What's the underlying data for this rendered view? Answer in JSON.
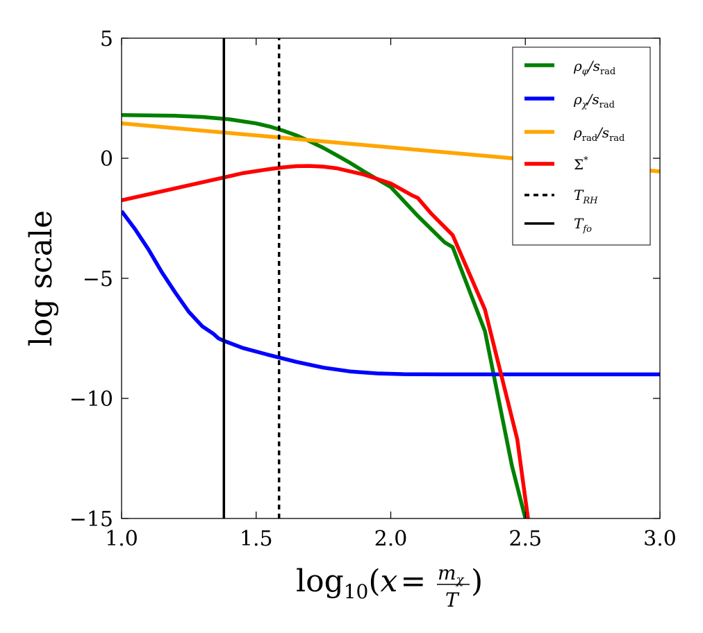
{
  "chart_data": {
    "type": "line",
    "xlabel": "log10(x = mχ / T)",
    "ylabel": "log scale",
    "xlim": [
      1.0,
      3.0
    ],
    "ylim": [
      -15,
      5
    ],
    "xticks": [
      1.0,
      1.5,
      2.0,
      2.5,
      3.0
    ],
    "xtick_labels": [
      "1.0",
      "1.5",
      "2.0",
      "2.5",
      "3.0"
    ],
    "yticks": [
      5,
      0,
      -5,
      -10,
      -15
    ],
    "ytick_labels": [
      "5",
      "0",
      "−5",
      "−10",
      "−15"
    ],
    "grid": false,
    "legend_position": "top-right",
    "series": [
      {
        "name": "ρφ/srad",
        "color": "#008000",
        "style": "solid",
        "x": [
          1.0,
          1.2,
          1.3,
          1.4,
          1.5,
          1.55,
          1.6,
          1.65,
          1.7,
          1.75,
          1.8,
          1.85,
          1.9,
          2.0,
          2.1,
          2.2,
          2.23,
          2.35,
          2.45,
          2.5
        ],
        "y": [
          1.8,
          1.77,
          1.72,
          1.62,
          1.45,
          1.32,
          1.15,
          0.95,
          0.7,
          0.43,
          0.12,
          -0.2,
          -0.55,
          -1.2,
          -2.4,
          -3.5,
          -3.7,
          -7.2,
          -12.8,
          -15.0
        ]
      },
      {
        "name": "ρχ/srad",
        "color": "#0000ff",
        "style": "solid",
        "x": [
          1.0,
          1.05,
          1.1,
          1.15,
          1.2,
          1.25,
          1.3,
          1.34,
          1.36,
          1.38,
          1.45,
          1.55,
          1.65,
          1.75,
          1.85,
          1.95,
          2.05,
          2.2,
          2.5,
          3.0
        ],
        "y": [
          -2.2,
          -2.95,
          -3.8,
          -4.75,
          -5.6,
          -6.4,
          -7.0,
          -7.3,
          -7.5,
          -7.6,
          -7.9,
          -8.2,
          -8.48,
          -8.72,
          -8.88,
          -8.96,
          -8.99,
          -9.0,
          -9.0,
          -9.0
        ]
      },
      {
        "name": "ρrad/srad",
        "color": "#ffa500",
        "style": "solid",
        "x": [
          1.0,
          3.0
        ],
        "y": [
          1.45,
          -0.55
        ]
      },
      {
        "name": "Σ*",
        "color": "#ff0000",
        "style": "solid",
        "x": [
          1.0,
          1.2,
          1.38,
          1.45,
          1.55,
          1.6,
          1.65,
          1.7,
          1.75,
          1.8,
          1.9,
          2.0,
          2.08,
          2.1,
          2.15,
          2.23,
          2.35,
          2.47,
          2.51
        ],
        "y": [
          -1.75,
          -1.25,
          -0.8,
          -0.62,
          -0.45,
          -0.38,
          -0.33,
          -0.32,
          -0.35,
          -0.42,
          -0.68,
          -1.05,
          -1.55,
          -1.65,
          -2.3,
          -3.2,
          -6.3,
          -11.7,
          -15.0
        ]
      },
      {
        "name": "TRH",
        "color": "#000000",
        "style": "dashed",
        "x": [
          1.585,
          1.585
        ],
        "y": [
          -15,
          5
        ]
      },
      {
        "name": "Tfo",
        "color": "#000000",
        "style": "solid",
        "x": [
          1.38,
          1.38
        ],
        "y": [
          -15,
          5
        ]
      }
    ]
  }
}
